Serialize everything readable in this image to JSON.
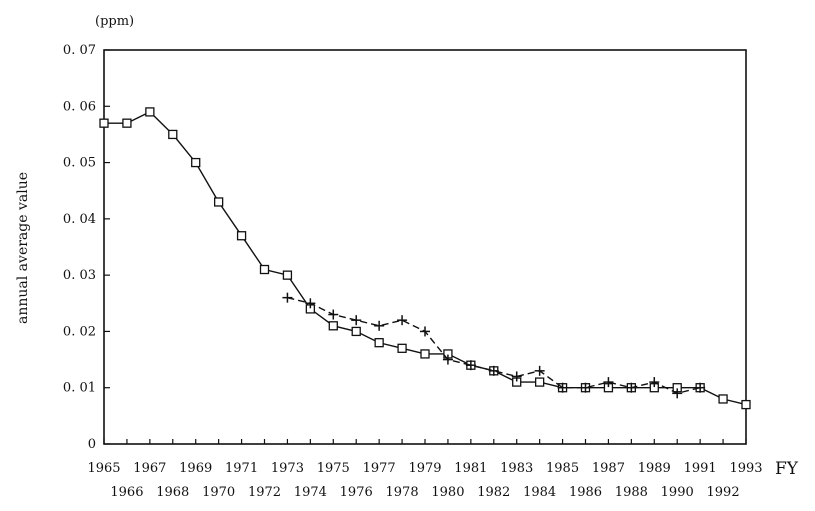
{
  "chart_data": {
    "type": "line",
    "title": "",
    "unit_label": "(ppm)",
    "ylabel": "annual average value",
    "xlabel": "FY",
    "ylim": [
      0,
      0.07
    ],
    "xlim": [
      1965,
      1993
    ],
    "y_ticks": [
      "0",
      "0. 01",
      "0. 02",
      "0. 03",
      "0. 04",
      "0. 05",
      "0. 06",
      "0. 07"
    ],
    "x_ticks_upper": [
      "1965",
      "1967",
      "1969",
      "1971",
      "1973",
      "1975",
      "1977",
      "1979",
      "1981",
      "1983",
      "1985",
      "1987",
      "1989",
      "1991",
      "1993"
    ],
    "x_ticks_lower": [
      "1966",
      "1968",
      "1970",
      "1972",
      "1974",
      "1976",
      "1978",
      "1980",
      "1982",
      "1984",
      "1986",
      "1988",
      "1990",
      "1992"
    ],
    "grid": false,
    "series": [
      {
        "marker": "square",
        "line_style": "solid",
        "x": [
          1965,
          1966,
          1967,
          1968,
          1969,
          1970,
          1971,
          1972,
          1973,
          1974,
          1975,
          1976,
          1977,
          1978,
          1979,
          1980,
          1981,
          1982,
          1983,
          1984,
          1985,
          1986,
          1987,
          1988,
          1989,
          1990,
          1991,
          1992,
          1993
        ],
        "values": [
          0.057,
          0.057,
          0.059,
          0.055,
          0.05,
          0.043,
          0.037,
          0.031,
          0.03,
          0.024,
          0.021,
          0.02,
          0.018,
          0.017,
          0.016,
          0.016,
          0.014,
          0.013,
          0.011,
          0.011,
          0.01,
          0.01,
          0.01,
          0.01,
          0.01,
          0.01,
          0.01,
          0.008,
          0.007
        ]
      },
      {
        "marker": "plus",
        "line_style": "dashed",
        "x": [
          1973,
          1974,
          1975,
          1976,
          1977,
          1978,
          1979,
          1980,
          1981,
          1982,
          1983,
          1984,
          1985,
          1986,
          1987,
          1988,
          1989,
          1990,
          1991
        ],
        "values": [
          0.026,
          0.025,
          0.023,
          0.022,
          0.021,
          0.022,
          0.02,
          0.015,
          0.014,
          0.013,
          0.012,
          0.013,
          0.01,
          0.01,
          0.011,
          0.01,
          0.011,
          0.009,
          0.01
        ]
      }
    ]
  }
}
